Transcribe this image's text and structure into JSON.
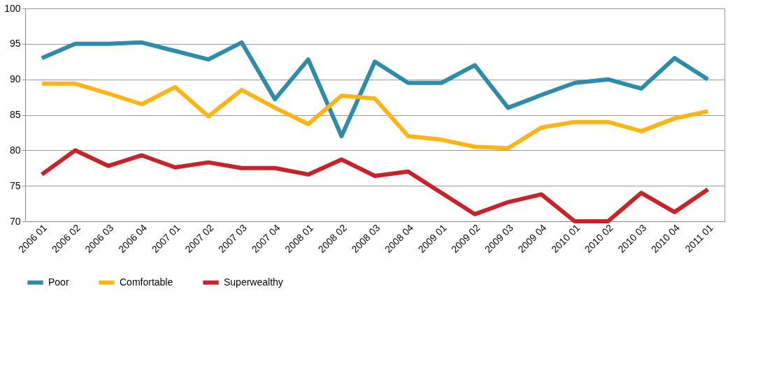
{
  "chart_data": {
    "type": "line",
    "categories": [
      "2006 01",
      "2006 02",
      "2006 03",
      "2006 04",
      "2007 01",
      "2007 02",
      "2007 03",
      "2007 04",
      "2008 01",
      "2008 02",
      "2008 03",
      "2008 04",
      "2009 01",
      "2009 02",
      "2009 03",
      "2009 04",
      "2010 01",
      "2010 02",
      "2010 03",
      "2010 04",
      "2011 01"
    ],
    "series": [
      {
        "name": "Poor",
        "color": "#2e8ca8",
        "values": [
          93,
          95,
          95,
          95.2,
          94,
          92.8,
          95.2,
          87.2,
          92.8,
          82,
          92.5,
          89.5,
          89.5,
          92,
          86,
          87.8,
          89.5,
          90,
          88.7,
          93,
          90
        ]
      },
      {
        "name": "Comfortable",
        "color": "#fdb515",
        "values": [
          89.4,
          89.4,
          88,
          86.5,
          88.9,
          84.8,
          88.5,
          86,
          83.7,
          87.7,
          87.3,
          82,
          81.5,
          80.5,
          80.3,
          83.2,
          84,
          84,
          82.7,
          84.5,
          85.5
        ]
      },
      {
        "name": "Superwealthy",
        "color": "#c8232a",
        "values": [
          76.6,
          80,
          77.8,
          79.3,
          77.6,
          78.3,
          77.5,
          77.5,
          76.6,
          78.7,
          76.4,
          77,
          74,
          71,
          72.7,
          73.8,
          70,
          70,
          74,
          71.3,
          74.5
        ]
      }
    ],
    "ylim": [
      70,
      100
    ],
    "yticks": [
      70,
      75,
      80,
      85,
      90,
      95,
      100
    ],
    "grid": "y",
    "legend": "bottom",
    "marker": "none",
    "line_style": "solid"
  }
}
